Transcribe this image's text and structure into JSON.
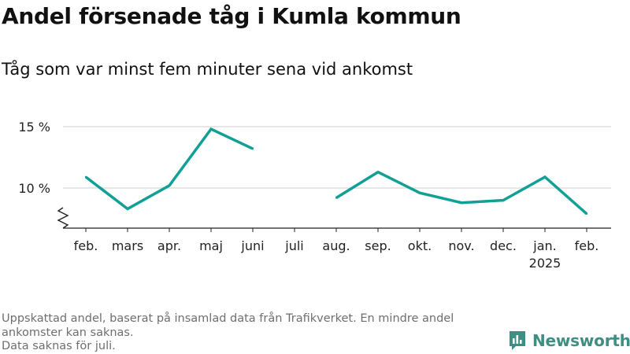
{
  "header": {
    "title": "Andel försenade tåg i Kumla kommun",
    "subtitle": "Tåg som var minst fem minuter sena vid ankomst"
  },
  "footer": {
    "note_line1": "Uppskattad andel, baserat på insamlad data från Trafikverket. En mindre andel ankomster kan saknas.",
    "note_line2": "Data saknas för juli.",
    "brand": "Newsworthy",
    "brand_icon": "bar-chart-logo-icon"
  },
  "colors": {
    "series": "#12a096",
    "grid": "#dddddd",
    "axis": "#222222",
    "brand": "#3c8f82"
  },
  "chart_data": {
    "type": "line",
    "categories": [
      "feb.",
      "mars",
      "apr.",
      "maj",
      "juni",
      "juli",
      "aug.",
      "sep.",
      "okt.",
      "nov.",
      "dec.",
      "jan.",
      "feb."
    ],
    "year_labels": [
      {
        "index": 11,
        "label": "2025"
      }
    ],
    "series": [
      {
        "values": [
          10.9,
          8.3,
          10.2,
          14.8,
          13.2,
          null,
          9.2,
          11.3,
          9.6,
          8.8,
          9.0,
          10.9,
          7.9
        ]
      }
    ],
    "yticks": [
      {
        "value": 10,
        "label": "10 %"
      },
      {
        "value": 15,
        "label": "15 %"
      }
    ],
    "ylim": [
      7.1,
      15.9
    ],
    "y_axis_break": true,
    "grid": true,
    "xlabel": "",
    "ylabel": ""
  }
}
